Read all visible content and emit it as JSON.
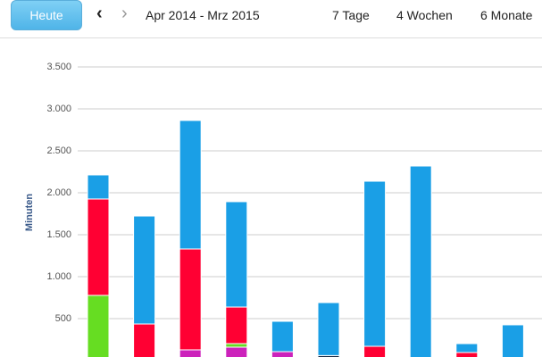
{
  "toolbar": {
    "today": "Heute",
    "range": "Apr 2014 - Mrz 2015",
    "views": [
      "7 Tage",
      "4 Wochen",
      "6 Monate"
    ]
  },
  "chart_data": {
    "type": "bar",
    "stacked": true,
    "y_label": "Minuten",
    "categories": [
      null,
      null,
      null,
      null,
      null,
      null,
      null,
      null,
      null,
      null
    ],
    "series": [
      {
        "color": "#cc22bb",
        "values": [
          null,
          null,
          128,
          160,
          106,
          null,
          null,
          null,
          null,
          null
        ]
      },
      {
        "color": "#1a2a44",
        "values": [
          null,
          null,
          null,
          null,
          null,
          60,
          null,
          null,
          null,
          null
        ]
      },
      {
        "color": "#66dd22",
        "values": [
          777,
          null,
          null,
          42,
          null,
          null,
          null,
          null,
          null,
          null
        ]
      },
      {
        "color": "#ff0033",
        "values": [
          1149,
          436,
          1202,
          436,
          null,
          null,
          170,
          null,
          96,
          null
        ]
      },
      {
        "color": "#1a9fe6",
        "values": [
          287,
          1287,
          1532,
          1256,
          362,
          631,
          1968,
          2319,
          106,
          426
        ]
      }
    ],
    "ylim": [
      0,
      3500
    ],
    "yticks": [
      {
        "value": 500,
        "label": "500"
      },
      {
        "value": 1000,
        "label": "1.000"
      },
      {
        "value": 1500,
        "label": "1.500"
      },
      {
        "value": 2000,
        "label": "2.000"
      },
      {
        "value": 2500,
        "label": "2.500"
      },
      {
        "value": 3000,
        "label": "3.000"
      },
      {
        "value": 3500,
        "label": "3.500"
      }
    ],
    "grid": true
  }
}
